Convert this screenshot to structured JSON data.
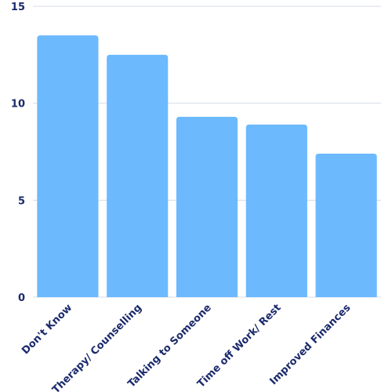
{
  "chart_data": {
    "type": "bar",
    "categories": [
      "Don't Know",
      "Therapy/ Counselling",
      "Talking to Someone",
      "Time off Work/ Rest",
      "Improved Finances"
    ],
    "values": [
      13.5,
      12.5,
      9.3,
      8.9,
      7.4
    ],
    "color": "#6cb9fe",
    "ylim": [
      0,
      15
    ],
    "yticks": [
      0,
      5,
      10,
      15
    ],
    "grid": true
  }
}
